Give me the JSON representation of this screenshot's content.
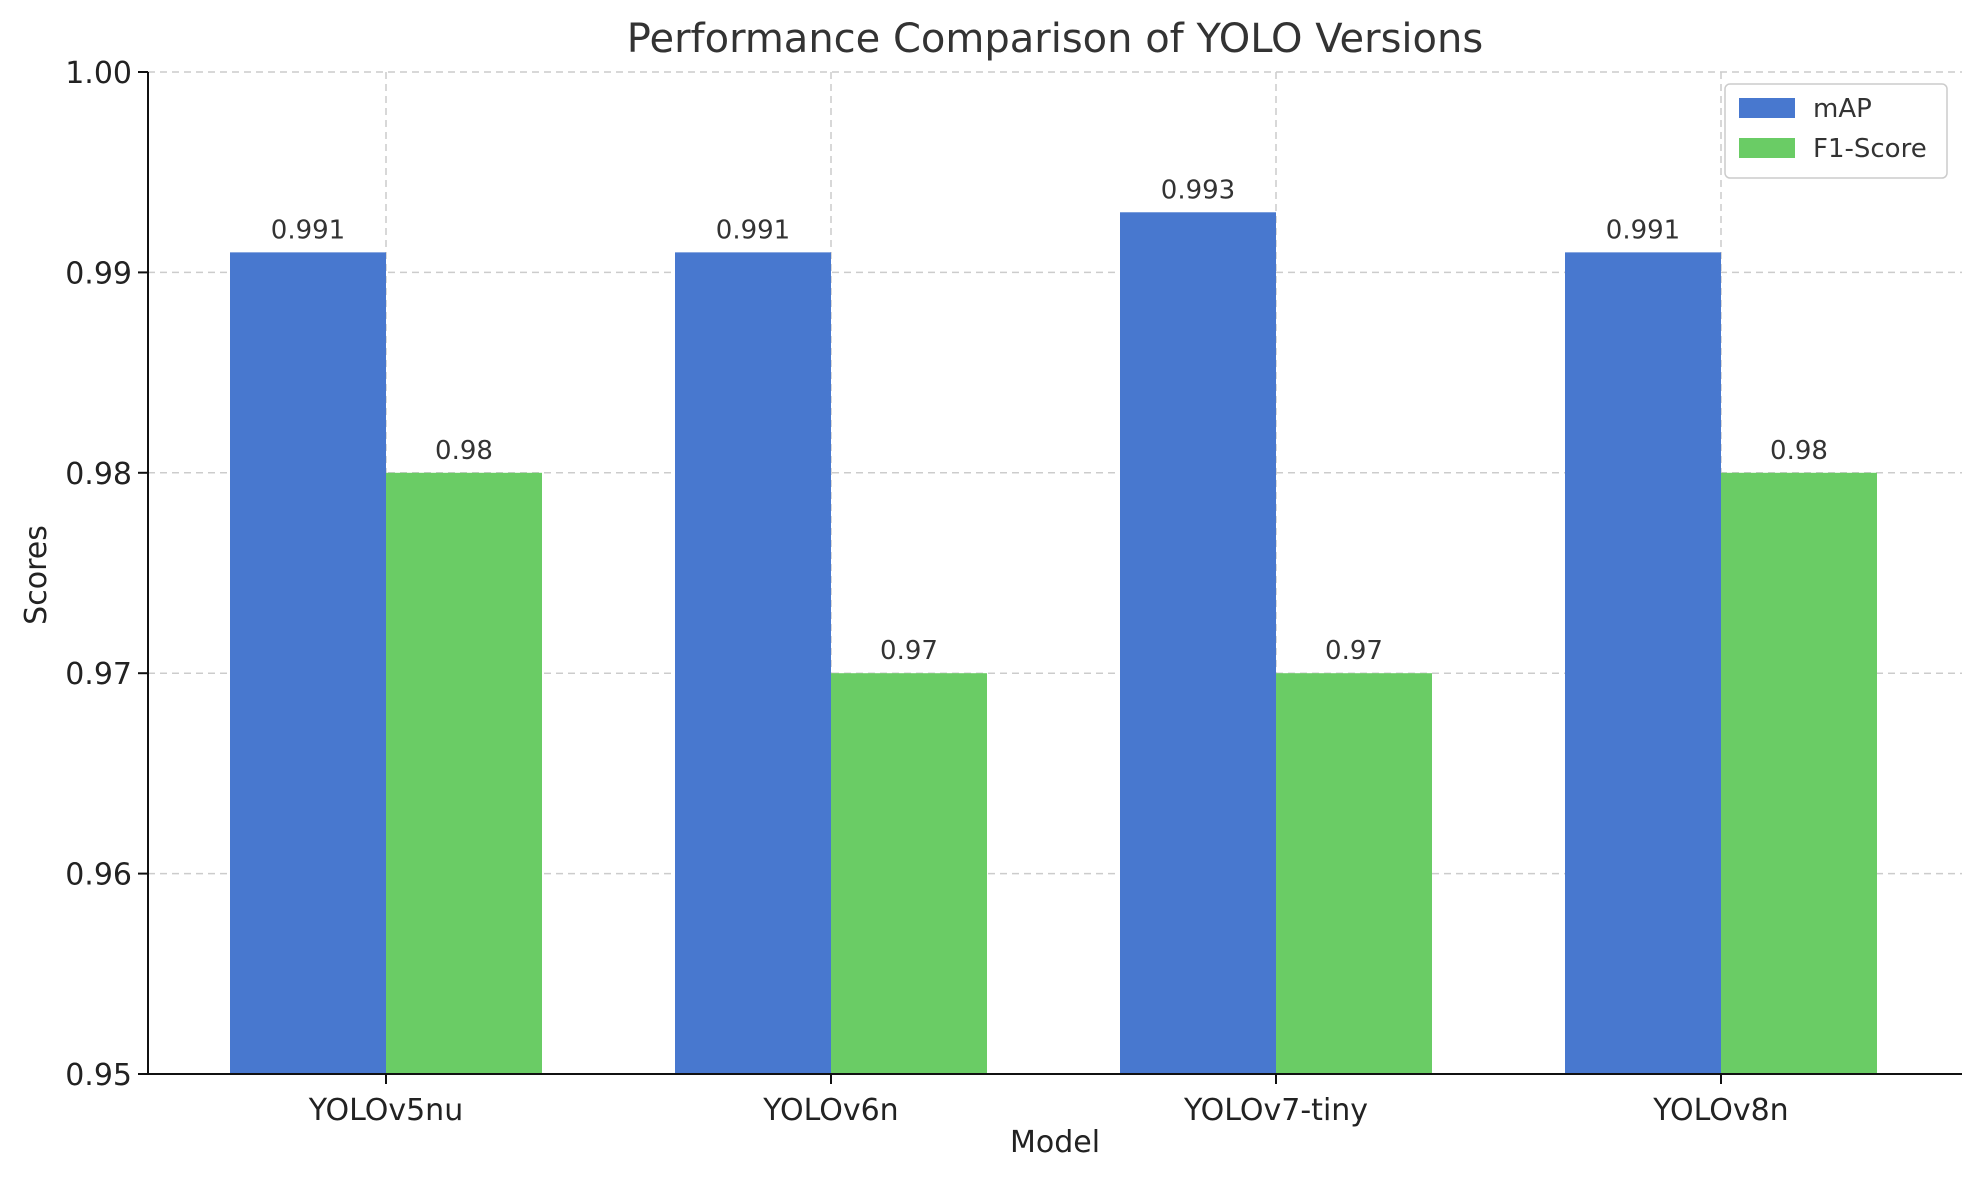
{
  "chart_data": {
    "type": "bar",
    "title": "Performance Comparison of YOLO Versions",
    "xlabel": "Model",
    "ylabel": "Scores",
    "ylim": [
      0.95,
      1.0
    ],
    "yticks": [
      0.95,
      0.96,
      0.97,
      0.98,
      0.99,
      1.0
    ],
    "ytick_labels": [
      "0.95",
      "0.96",
      "0.97",
      "0.98",
      "0.99",
      "1.00"
    ],
    "categories": [
      "YOLOv5nu",
      "YOLOv6n",
      "YOLOv7-tiny",
      "YOLOv8n"
    ],
    "series": [
      {
        "name": "mAP",
        "color": "#4878cf",
        "values": [
          0.991,
          0.991,
          0.993,
          0.991
        ],
        "labels": [
          "0.991",
          "0.991",
          "0.993",
          "0.991"
        ]
      },
      {
        "name": "F1-Score",
        "color": "#6acc65",
        "values": [
          0.98,
          0.97,
          0.97,
          0.98
        ],
        "labels": [
          "0.98",
          "0.97",
          "0.97",
          "0.98"
        ]
      }
    ],
    "grid": true,
    "legend": "top-right"
  }
}
